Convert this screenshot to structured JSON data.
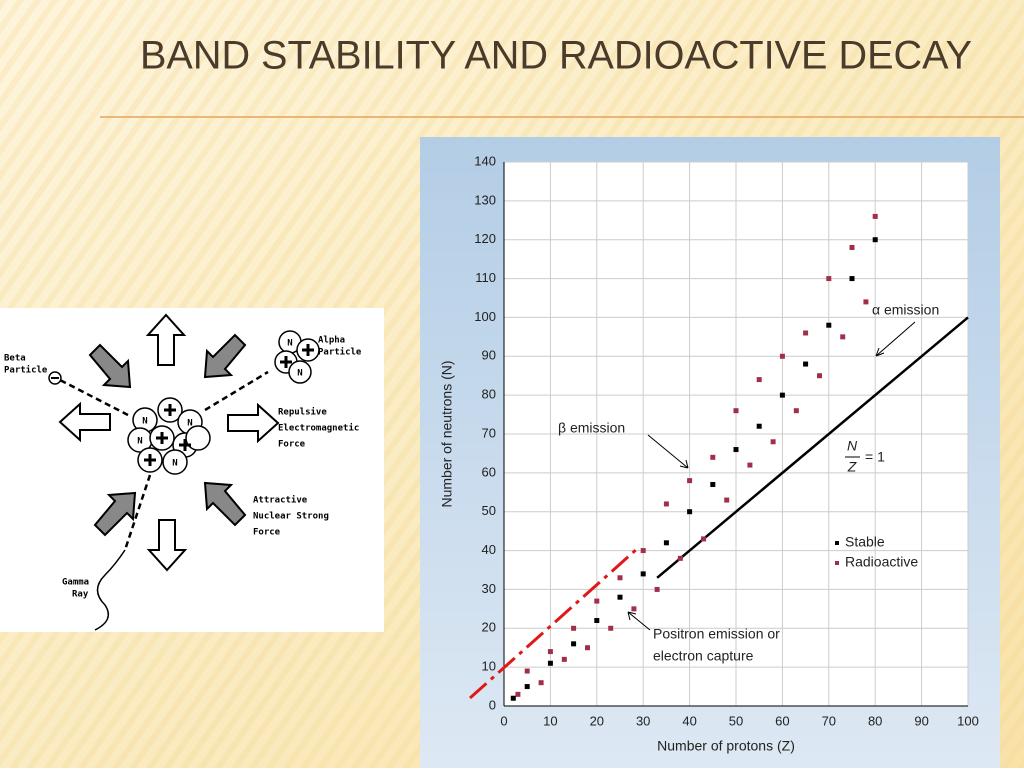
{
  "title": "BAND STABILITY AND RADIOACTIVE DECAY",
  "diagram": {
    "neutron_symbol": "N",
    "beta_particle": [
      "Beta",
      "Particle"
    ],
    "alpha_particle": [
      "Alpha",
      "Particle"
    ],
    "repulsive_force": [
      "Repulsive",
      "Electromagnetic",
      "Force"
    ],
    "attractive_force": [
      "Attractive",
      "Nuclear Strong",
      "Force"
    ],
    "gamma_ray": [
      "Gamma",
      "Ray"
    ]
  },
  "chart_data": {
    "type": "scatter",
    "x_label": "Number of protons (Z)",
    "y_label": "Number of neutrons (N)",
    "xlim": [
      0,
      100
    ],
    "ylim": [
      0,
      140
    ],
    "xticks": [
      0,
      10,
      20,
      30,
      40,
      50,
      60,
      70,
      80,
      90,
      100
    ],
    "yticks": [
      0,
      10,
      20,
      30,
      40,
      50,
      60,
      70,
      80,
      90,
      100,
      110,
      120,
      130,
      140
    ],
    "grid": true,
    "legend": "lower right",
    "series": [
      {
        "name": "Stable",
        "color": "#000000",
        "x": [
          2,
          5,
          10,
          15,
          20,
          25,
          30,
          35,
          40,
          45,
          50,
          55,
          60,
          65,
          70,
          75,
          80
        ],
        "y": [
          2,
          5,
          11,
          16,
          22,
          28,
          34,
          42,
          50,
          57,
          66,
          72,
          80,
          88,
          98,
          110,
          120
        ]
      },
      {
        "name": "Radioactive",
        "color": "#a0304a",
        "x": [
          5,
          10,
          15,
          20,
          25,
          30,
          35,
          40,
          45,
          50,
          55,
          60,
          65,
          70,
          75,
          80,
          3,
          8,
          13,
          18,
          23,
          28,
          33,
          38,
          43,
          48,
          53,
          58,
          63,
          68,
          73,
          78
        ],
        "y": [
          9,
          14,
          20,
          27,
          33,
          40,
          52,
          58,
          64,
          76,
          84,
          90,
          96,
          110,
          118,
          126,
          3,
          6,
          12,
          15,
          20,
          25,
          30,
          38,
          43,
          53,
          62,
          68,
          76,
          85,
          95,
          104
        ]
      }
    ],
    "reference_line": {
      "x": [
        33,
        100
      ],
      "y": [
        33,
        100
      ],
      "color": "#000000"
    },
    "ratio_label": {
      "numerator": "N",
      "denominator": "Z",
      "text": "= 1"
    },
    "annotations": {
      "alpha": "α emission",
      "beta": "β emission",
      "positron": [
        "Positron emission or",
        "electron capture"
      ]
    }
  }
}
